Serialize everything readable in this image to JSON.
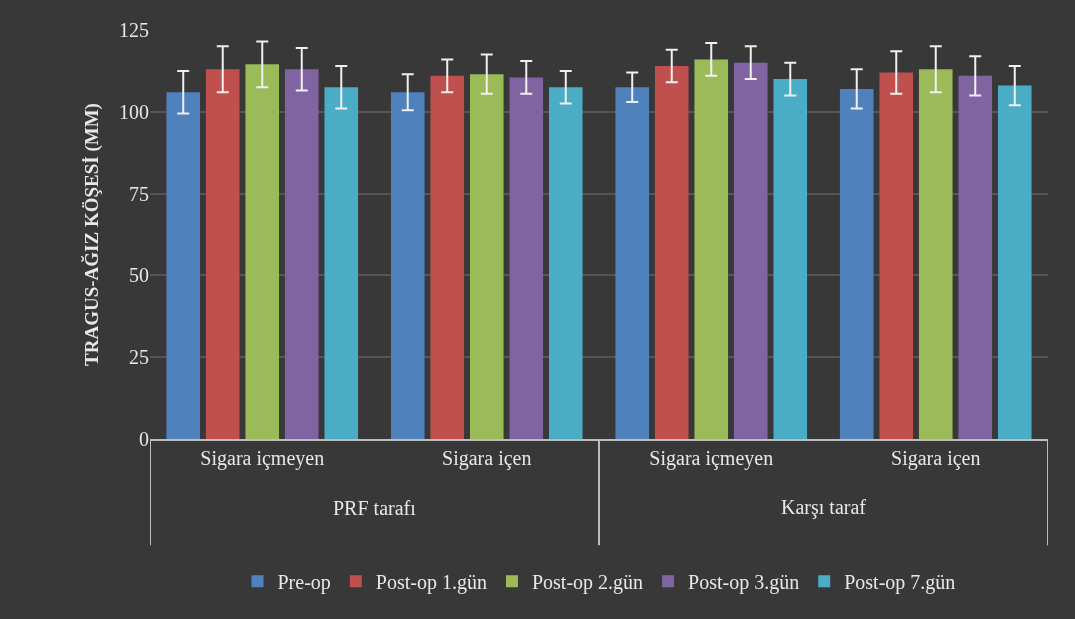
{
  "chart_data": {
    "type": "bar",
    "ylabel": "TRAGUS-AĞIZ KÖŞESİ (MM)",
    "categories": [
      "Sigara içmeyen",
      "Sigara içen",
      "Sigara içmeyen",
      "Sigara içen"
    ],
    "annotations": [
      "PRF tarafı",
      "Karşı taraf"
    ],
    "series": [
      {
        "name": "Pre-op",
        "color": "#4f81bd",
        "values": [
          106,
          106,
          107.5,
          107
        ],
        "errors": [
          6.5,
          5.5,
          4.5,
          6
        ]
      },
      {
        "name": "Post-op 1.gün",
        "color": "#c0504d",
        "values": [
          113,
          111,
          114,
          112
        ],
        "errors": [
          7,
          5,
          5,
          6.5
        ]
      },
      {
        "name": "Post-op 2.gün",
        "color": "#9bbb59",
        "values": [
          114.5,
          111.5,
          116,
          113
        ],
        "errors": [
          7,
          6,
          5,
          7
        ]
      },
      {
        "name": "Post-op 3.gün",
        "color": "#8064a2",
        "values": [
          113,
          110.5,
          115,
          111
        ],
        "errors": [
          6.5,
          5,
          5,
          6
        ]
      },
      {
        "name": "Post-op 7.gün",
        "color": "#4bacc6",
        "values": [
          107.5,
          107.5,
          110,
          108
        ],
        "errors": [
          6.5,
          5,
          5,
          6
        ]
      }
    ],
    "ylim": [
      0,
      125
    ],
    "yticks": [
      0,
      25,
      50,
      75,
      100,
      125
    ],
    "grid": "y",
    "legend": "bottom"
  }
}
